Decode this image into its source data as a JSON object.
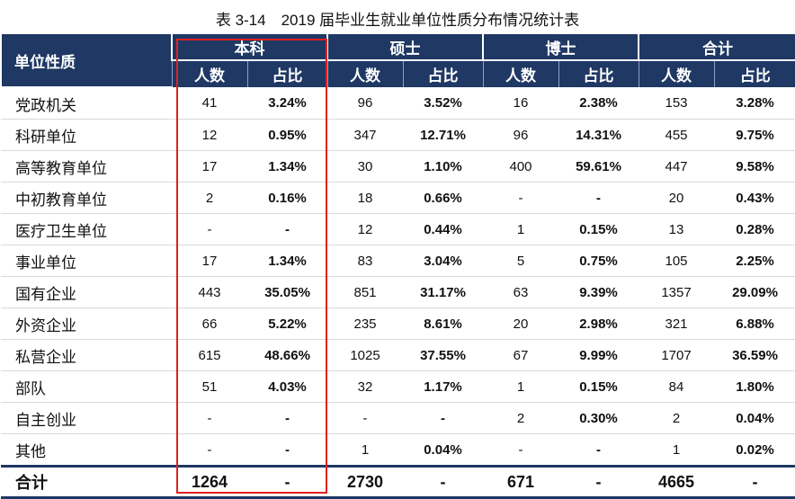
{
  "title": "表 3-14　2019 届毕业生就业单位性质分布情况统计表",
  "header": {
    "first": "单位性质",
    "groups": [
      "本科",
      "硕士",
      "博士",
      "合计"
    ],
    "sub": [
      "人数",
      "占比"
    ]
  },
  "rows": [
    [
      "党政机关",
      "41",
      "3.24%",
      "96",
      "3.52%",
      "16",
      "2.38%",
      "153",
      "3.28%"
    ],
    [
      "科研单位",
      "12",
      "0.95%",
      "347",
      "12.71%",
      "96",
      "14.31%",
      "455",
      "9.75%"
    ],
    [
      "高等教育单位",
      "17",
      "1.34%",
      "30",
      "1.10%",
      "400",
      "59.61%",
      "447",
      "9.58%"
    ],
    [
      "中初教育单位",
      "2",
      "0.16%",
      "18",
      "0.66%",
      "-",
      "-",
      "20",
      "0.43%"
    ],
    [
      "医疗卫生单位",
      "-",
      "-",
      "12",
      "0.44%",
      "1",
      "0.15%",
      "13",
      "0.28%"
    ],
    [
      "事业单位",
      "17",
      "1.34%",
      "83",
      "3.04%",
      "5",
      "0.75%",
      "105",
      "2.25%"
    ],
    [
      "国有企业",
      "443",
      "35.05%",
      "851",
      "31.17%",
      "63",
      "9.39%",
      "1357",
      "29.09%"
    ],
    [
      "外资企业",
      "66",
      "5.22%",
      "235",
      "8.61%",
      "20",
      "2.98%",
      "321",
      "6.88%"
    ],
    [
      "私营企业",
      "615",
      "48.66%",
      "1025",
      "37.55%",
      "67",
      "9.99%",
      "1707",
      "36.59%"
    ],
    [
      "部队",
      "51",
      "4.03%",
      "32",
      "1.17%",
      "1",
      "0.15%",
      "84",
      "1.80%"
    ],
    [
      "自主创业",
      "-",
      "-",
      "-",
      "-",
      "2",
      "0.30%",
      "2",
      "0.04%"
    ],
    [
      "其他",
      "-",
      "-",
      "1",
      "0.04%",
      "-",
      "-",
      "1",
      "0.02%"
    ]
  ],
  "total": [
    "合计",
    "1264",
    "-",
    "2730",
    "-",
    "671",
    "-",
    "4665",
    "-"
  ]
}
